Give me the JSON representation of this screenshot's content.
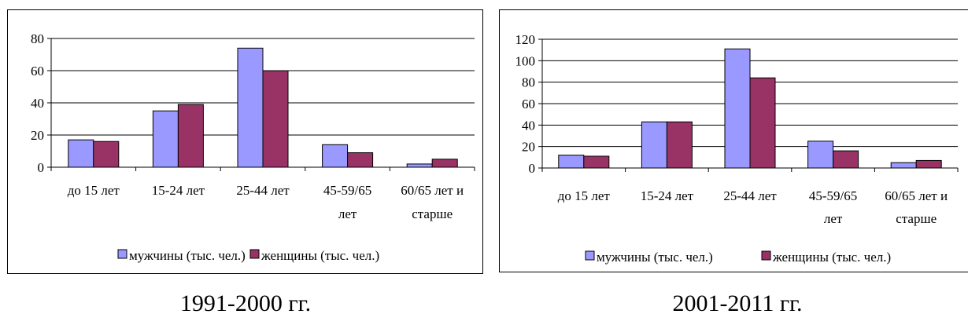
{
  "legend_male_color": "#9999ff",
  "legend_female_color": "#993366",
  "chart_data": [
    {
      "type": "bar",
      "title": "",
      "xlabel": "",
      "ylabel": "",
      "ylim": [
        0,
        80
      ],
      "yticks": [
        0,
        20,
        40,
        60,
        80
      ],
      "grid": true,
      "legend_position": "bottom",
      "categories": [
        [
          "до 15 лет"
        ],
        [
          "15-24 лет"
        ],
        [
          "25-44 лет"
        ],
        [
          "45-59/65",
          "лет"
        ],
        [
          "60/65 лет и",
          "старше"
        ]
      ],
      "series": [
        {
          "name": "мужчины (тыс. чел.)",
          "color": "#9999ff",
          "values": [
            17,
            35,
            74,
            14,
            2
          ]
        },
        {
          "name": "женщины (тыс. чел.)",
          "color": "#993366",
          "values": [
            16,
            39,
            60,
            9,
            5
          ]
        }
      ]
    },
    {
      "type": "bar",
      "title": "",
      "xlabel": "",
      "ylabel": "",
      "ylim": [
        0,
        120
      ],
      "yticks": [
        0,
        20,
        40,
        60,
        80,
        100,
        120
      ],
      "grid": true,
      "legend_position": "bottom",
      "categories": [
        [
          "до 15 лет"
        ],
        [
          "15-24 лет"
        ],
        [
          "25-44 лет"
        ],
        [
          "45-59/65",
          "лет"
        ],
        [
          "60/65 лет и",
          "старше"
        ]
      ],
      "series": [
        {
          "name": "мужчины (тыс. чел.)",
          "color": "#9999ff",
          "values": [
            12,
            43,
            111,
            25,
            5
          ]
        },
        {
          "name": "женщины (тыс. чел.)",
          "color": "#993366",
          "values": [
            11,
            43,
            84,
            16,
            7
          ]
        }
      ]
    }
  ],
  "captions": {
    "left": "1991-2000 гг.",
    "right": "2001-2011 гг."
  }
}
